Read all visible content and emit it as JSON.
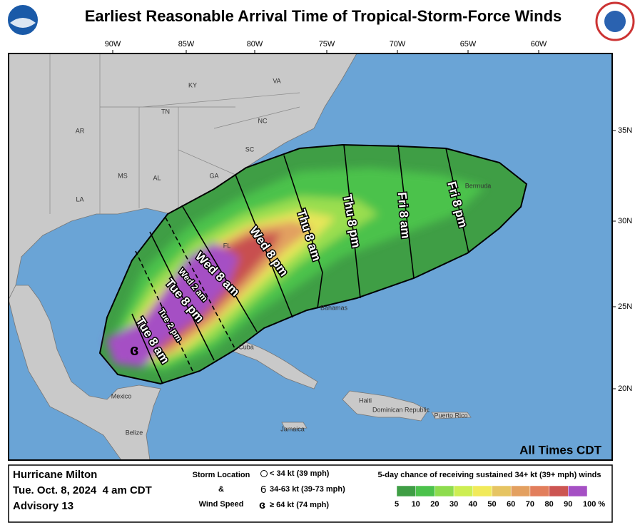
{
  "header": {
    "title": "Earliest Reasonable Arrival Time of Tropical-Storm-Force Winds"
  },
  "map": {
    "lon_labels": [
      "90W",
      "85W",
      "80W",
      "75W",
      "70W",
      "65W",
      "60W"
    ],
    "lat_labels": [
      "35N",
      "30N",
      "25N",
      "20N"
    ],
    "places": [
      "KY",
      "VA",
      "TN",
      "NC",
      "AR",
      "SC",
      "MS",
      "AL",
      "GA",
      "LA",
      "FL",
      "Bermuda",
      "Bahamas",
      "Cuba",
      "Mexico",
      "Belize",
      "Haiti",
      "Dominican Republic",
      "Jamaica",
      "Puerto Rico"
    ],
    "arrival_times": [
      "Tue 8 am",
      "Tue 2 pm",
      "Tue 8 pm",
      "Wed 2 am",
      "Wed 8 am",
      "Wed 8 pm",
      "Thu 8 am",
      "Thu 8 pm",
      "Fri 8 am",
      "Fri 8 pm"
    ],
    "time_zone_note": "All Times CDT"
  },
  "footer": {
    "storm": "Hurricane Milton",
    "date": "Tue. Oct. 8, 2024  4 am CDT",
    "advisory": "Advisory 13",
    "location_key": [
      "Storm Location",
      "&",
      "Wind Speed"
    ],
    "wind_key": [
      "< 34 kt (39 mph)",
      "34-63 kt (39-73 mph)",
      "≥ 64 kt (74 mph)"
    ],
    "scale_title": "5-day chance of receiving sustained 34+ kt (39+ mph) winds",
    "scale_labels": [
      "5",
      "10",
      "20",
      "30",
      "40",
      "50",
      "60",
      "70",
      "80",
      "90",
      "100 %"
    ],
    "scale_colors": [
      "#3f9e45",
      "#4cc24c",
      "#8edc4e",
      "#cdee52",
      "#f1ea5a",
      "#e6c462",
      "#e3a060",
      "#e27e5c",
      "#cc5552",
      "#a550c4"
    ]
  }
}
